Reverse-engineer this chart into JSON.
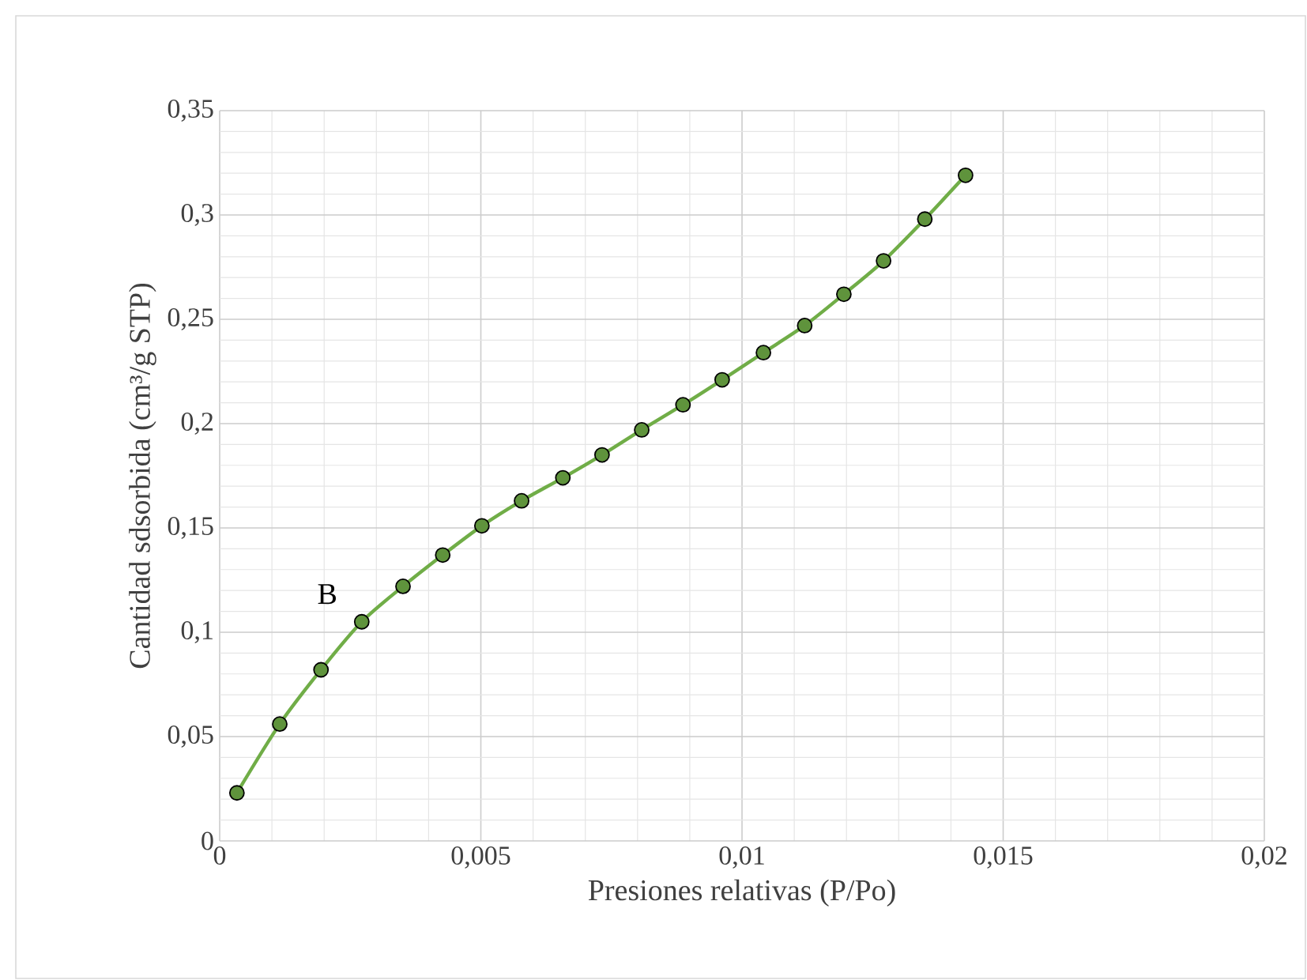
{
  "chart_data": {
    "type": "line",
    "xlabel": "Presiones relativas (P/Po)",
    "ylabel": "Cantidad sdsorbida (cm³/g STP)",
    "x": [
      0.00033,
      0.00115,
      0.00194,
      0.00272,
      0.00351,
      0.00427,
      0.00502,
      0.00578,
      0.00657,
      0.00732,
      0.00808,
      0.00887,
      0.00962,
      0.01041,
      0.0112,
      0.01195,
      0.01271,
      0.0135,
      0.01428
    ],
    "series": [
      {
        "color": "#70ad47",
        "values": [
          0.023,
          0.056,
          0.082,
          0.105,
          0.122,
          0.137,
          0.151,
          0.163,
          0.174,
          0.185,
          0.197,
          0.209,
          0.221,
          0.234,
          0.247,
          0.262,
          0.278,
          0.298,
          0.319
        ]
      }
    ],
    "xlim": [
      0,
      0.02
    ],
    "ylim": [
      0,
      0.35
    ],
    "xticks": [
      0,
      {
        "value": 0.005,
        "label": "0,005"
      },
      {
        "value": 0.01,
        "label": "0,01"
      },
      {
        "value": 0.015,
        "label": "0,015"
      },
      {
        "value": 0.02,
        "label": "0,02"
      }
    ],
    "yticks": [
      0,
      {
        "value": 0.05,
        "label": "0,05"
      },
      {
        "value": 0.1,
        "label": "0,1"
      },
      {
        "value": 0.15,
        "label": "0,15"
      },
      {
        "value": 0.2,
        "label": "0,2"
      },
      {
        "value": 0.25,
        "label": "0,25"
      },
      {
        "value": 0.3,
        "label": "0,3"
      },
      {
        "value": 0.35,
        "label": "0,35"
      }
    ],
    "annotations": [
      "B"
    ],
    "grid": true,
    "marker": "circle",
    "line_style": "solid"
  }
}
